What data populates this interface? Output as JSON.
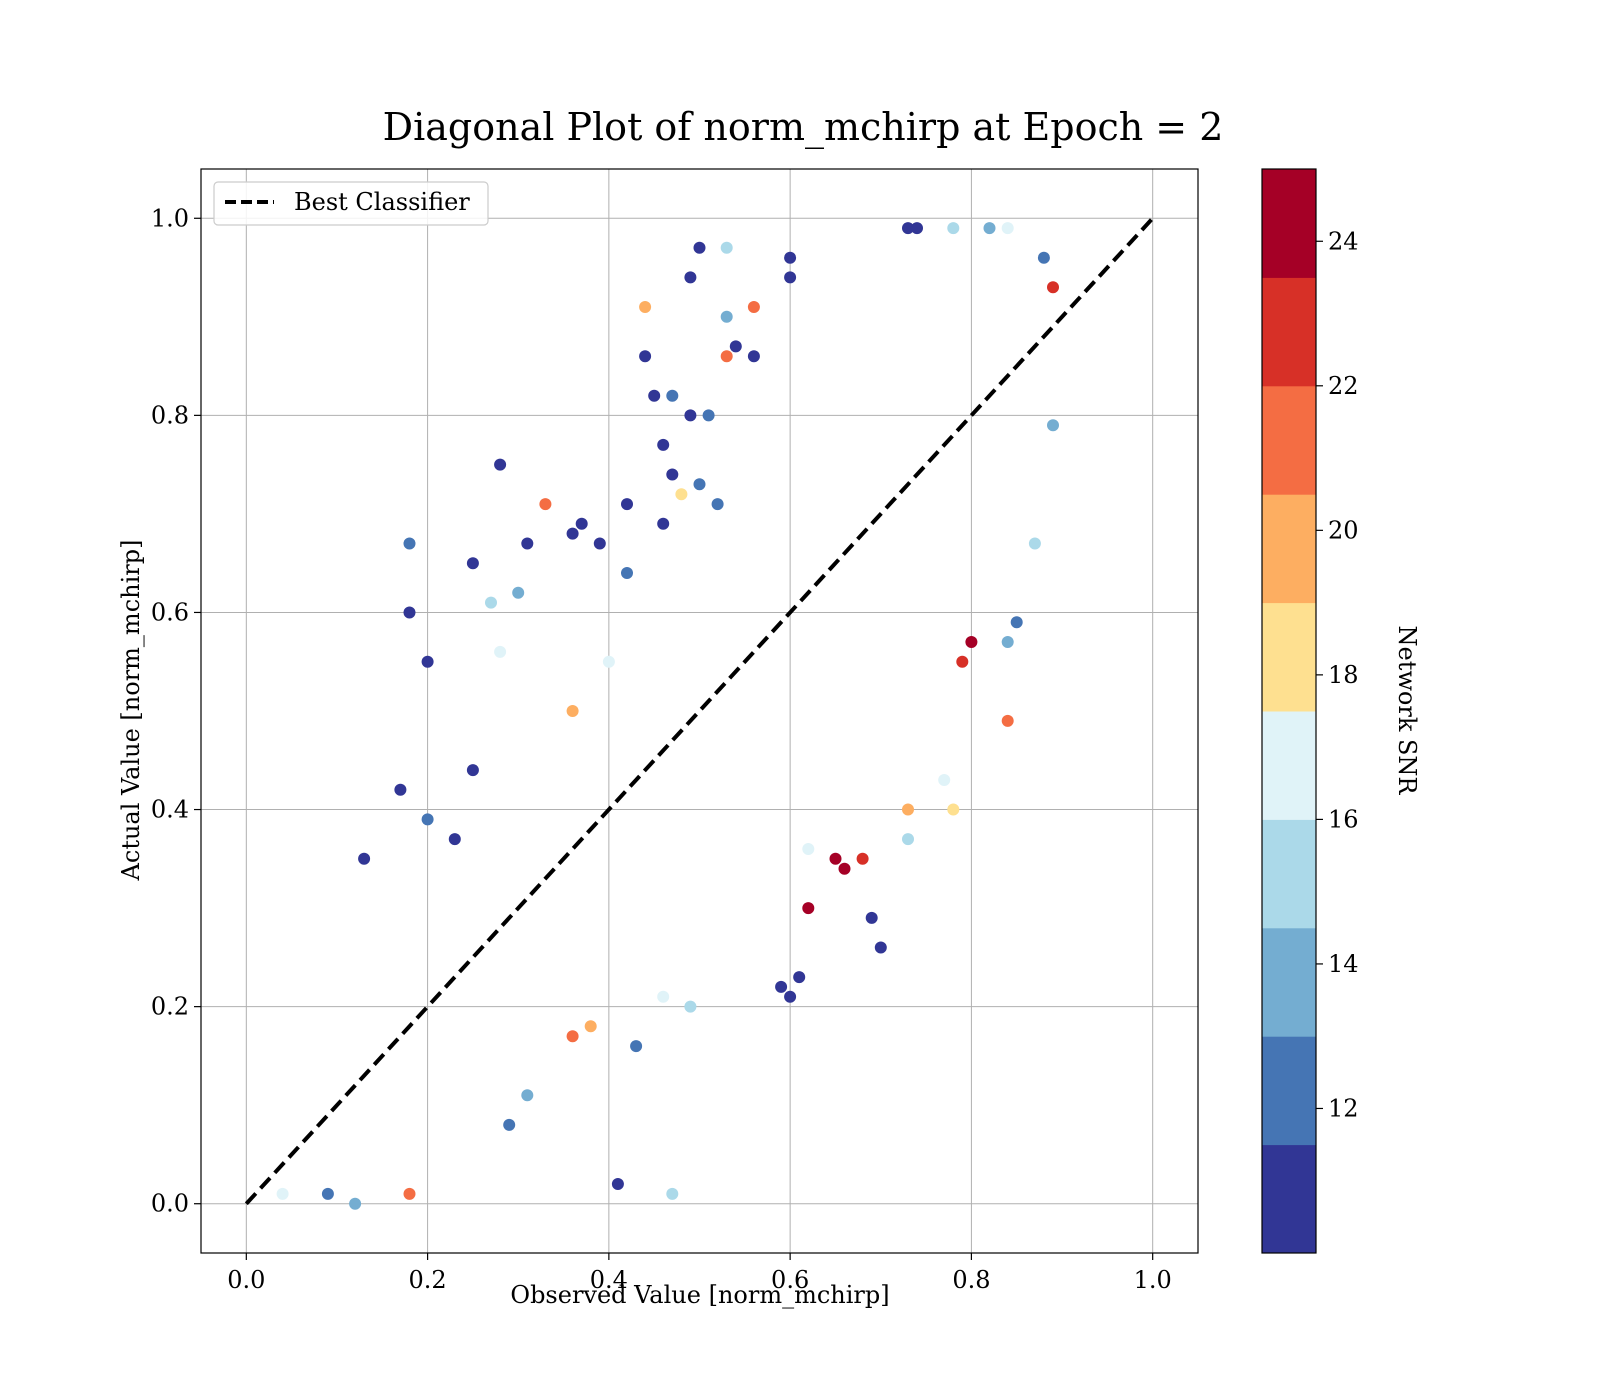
{
  "chart_data": {
    "type": "scatter",
    "title": "Diagonal Plot of norm_mchirp at Epoch = 2",
    "xlabel": "Observed Value [norm_mchirp]",
    "ylabel": "Actual Value [norm_mchirp]",
    "xlim": [
      -0.05,
      1.05
    ],
    "ylim": [
      -0.05,
      1.05
    ],
    "xticks": [
      0.0,
      0.2,
      0.4,
      0.6,
      0.8,
      1.0
    ],
    "yticks": [
      0.0,
      0.2,
      0.4,
      0.6,
      0.8,
      1.0
    ],
    "xtick_labels": [
      "0.0",
      "0.2",
      "0.4",
      "0.6",
      "0.8",
      "1.0"
    ],
    "ytick_labels": [
      "0.0",
      "0.2",
      "0.4",
      "0.6",
      "0.8",
      "1.0"
    ],
    "grid": true,
    "legend": {
      "placement": "upper-left",
      "entries": [
        "Best Classifier"
      ]
    },
    "reference_line": {
      "name": "Best Classifier",
      "style": "dashed",
      "color": "#000000",
      "x": [
        0.0,
        1.0
      ],
      "y": [
        0.0,
        1.0
      ]
    },
    "colorbar": {
      "label": "Network SNR",
      "range": [
        10,
        25
      ],
      "ticks": [
        12,
        14,
        16,
        18,
        20,
        22,
        24
      ],
      "tick_labels": [
        "12",
        "14",
        "16",
        "18",
        "20",
        "22",
        "24"
      ],
      "bins": 10,
      "colors": [
        "#313695",
        "#4575b4",
        "#74add1",
        "#abd9e9",
        "#e0f3f8",
        "#fee090",
        "#fdae61",
        "#f46d43",
        "#d73027",
        "#a50026"
      ]
    },
    "series": [
      {
        "color_by": "Network SNR",
        "points": [
          [
            0.5,
            0.97,
            10.2
          ],
          [
            0.49,
            0.94,
            10.5
          ],
          [
            0.53,
            0.97,
            14.8
          ],
          [
            0.53,
            0.9,
            14.2
          ],
          [
            0.6,
            0.96,
            10.4
          ],
          [
            0.6,
            0.94,
            11.1
          ],
          [
            0.44,
            0.86,
            10.3
          ],
          [
            0.54,
            0.87,
            10.6
          ],
          [
            0.53,
            0.86,
            21.3
          ],
          [
            0.56,
            0.86,
            10.8
          ],
          [
            0.46,
            0.77,
            10.5
          ],
          [
            0.45,
            0.82,
            10.1
          ],
          [
            0.47,
            0.82,
            11.5
          ],
          [
            0.49,
            0.8,
            10.2
          ],
          [
            0.51,
            0.8,
            12.3
          ],
          [
            0.44,
            0.91,
            20.4
          ],
          [
            0.56,
            0.91,
            21.8
          ],
          [
            0.28,
            0.75,
            11.0
          ],
          [
            0.33,
            0.71,
            21.6
          ],
          [
            0.31,
            0.67,
            10.3
          ],
          [
            0.36,
            0.68,
            10.7
          ],
          [
            0.37,
            0.69,
            10.1
          ],
          [
            0.39,
            0.67,
            11.2
          ],
          [
            0.18,
            0.67,
            12.1
          ],
          [
            0.18,
            0.6,
            11.0
          ],
          [
            0.2,
            0.55,
            10.4
          ],
          [
            0.25,
            0.65,
            10.6
          ],
          [
            0.27,
            0.61,
            14.9
          ],
          [
            0.3,
            0.62,
            14.1
          ],
          [
            0.28,
            0.56,
            16.2
          ],
          [
            0.17,
            0.42,
            10.3
          ],
          [
            0.13,
            0.35,
            10.2
          ],
          [
            0.2,
            0.39,
            11.8
          ],
          [
            0.23,
            0.37,
            10.5
          ],
          [
            0.25,
            0.44,
            11.1
          ],
          [
            0.41,
            0.02,
            10.2
          ],
          [
            0.47,
            0.01,
            15.8
          ],
          [
            0.43,
            0.16,
            11.9
          ],
          [
            0.29,
            0.08,
            12.6
          ],
          [
            0.31,
            0.11,
            13.1
          ],
          [
            0.69,
            0.29,
            10.4
          ],
          [
            0.7,
            0.26,
            10.2
          ],
          [
            0.6,
            0.21,
            10.3
          ],
          [
            0.59,
            0.22,
            10.9
          ],
          [
            0.61,
            0.23,
            11.2
          ],
          [
            0.49,
            0.2,
            14.5
          ],
          [
            0.46,
            0.21,
            16.9
          ],
          [
            0.73,
            0.4,
            19.2
          ],
          [
            0.78,
            0.4,
            18.1
          ],
          [
            0.77,
            0.43,
            17.4
          ],
          [
            0.84,
            0.49,
            20.8
          ],
          [
            0.73,
            0.37,
            14.6
          ],
          [
            0.79,
            0.55,
            23.1
          ],
          [
            0.8,
            0.57,
            23.9
          ],
          [
            0.85,
            0.59,
            11.5
          ],
          [
            0.84,
            0.57,
            14.2
          ],
          [
            0.87,
            0.67,
            14.8
          ],
          [
            0.73,
            0.99,
            10.1
          ],
          [
            0.74,
            0.99,
            10.6
          ],
          [
            0.82,
            0.99,
            13.9
          ],
          [
            0.84,
            0.99,
            16.5
          ],
          [
            0.78,
            0.99,
            15.2
          ],
          [
            0.88,
            0.96,
            11.8
          ],
          [
            0.89,
            0.79,
            14.2
          ],
          [
            0.89,
            0.93,
            23.4
          ],
          [
            0.65,
            0.35,
            24.8
          ],
          [
            0.66,
            0.34,
            24.6
          ],
          [
            0.68,
            0.35,
            22.9
          ],
          [
            0.62,
            0.3,
            24.7
          ],
          [
            0.36,
            0.17,
            21.0
          ],
          [
            0.38,
            0.18,
            19.5
          ],
          [
            0.18,
            0.01,
            21.5
          ],
          [
            0.12,
            0.0,
            13.8
          ],
          [
            0.04,
            0.01,
            16.6
          ],
          [
            0.09,
            0.01,
            11.7
          ],
          [
            0.47,
            0.74,
            10.5
          ],
          [
            0.5,
            0.73,
            12.2
          ],
          [
            0.52,
            0.71,
            11.7
          ],
          [
            0.48,
            0.72,
            18.4
          ],
          [
            0.46,
            0.69,
            11.1
          ],
          [
            0.42,
            0.64,
            12.8
          ],
          [
            0.42,
            0.71,
            11.0
          ],
          [
            0.4,
            0.55,
            17.1
          ],
          [
            0.36,
            0.5,
            20.2
          ],
          [
            0.62,
            0.36,
            16.1
          ]
        ]
      }
    ]
  }
}
